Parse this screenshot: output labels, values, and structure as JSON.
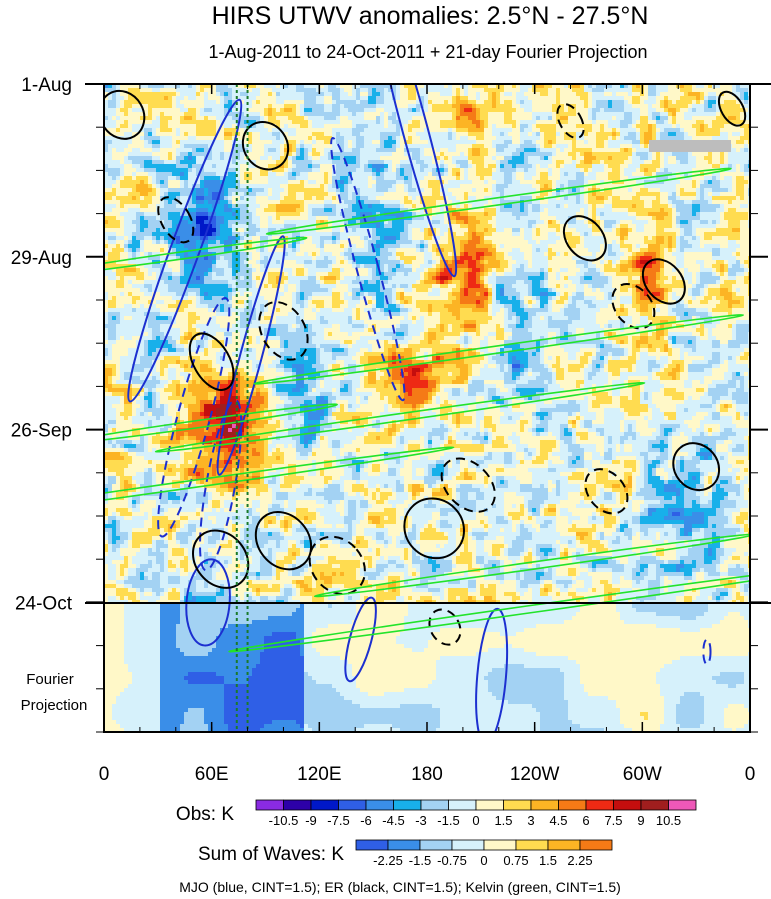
{
  "chart_data": {
    "type": "heatmap",
    "title": "HIRS UTWV anomalies: 2.5°N - 27.5°N",
    "subtitle": "1-Aug-2011 to 24-Oct-2011 + 21-day Fourier Projection",
    "x_ticks": [
      "0",
      "60E",
      "120E",
      "180",
      "120W",
      "60W",
      "0"
    ],
    "x_range_deg": [
      0,
      360
    ],
    "y_ticks": [
      "1-Aug",
      "29-Aug",
      "26-Sep",
      "24-Oct"
    ],
    "y_tick_days": [
      0,
      28,
      56,
      84
    ],
    "y_range_days": [
      0,
      105
    ],
    "observation_end_day": 84,
    "projection_label": [
      "Fourier",
      "Projection"
    ],
    "reference_lon_deg": [
      74,
      80
    ],
    "obs_legend": {
      "label": "Obs: K",
      "levels": [
        "-10.5",
        "-9",
        "-7.5",
        "-6",
        "-4.5",
        "-3",
        "-1.5",
        "0",
        "1.5",
        "3",
        "4.5",
        "6",
        "7.5",
        "9",
        "10.5"
      ],
      "colors": [
        "#8a2be2",
        "#2d00a8",
        "#0018c8",
        "#2f5fe6",
        "#3a8ee8",
        "#18b0ea",
        "#a3d2f3",
        "#d6f1fb",
        "#fff8c8",
        "#ffdc50",
        "#fcb424",
        "#f57a16",
        "#ee2a14",
        "#c40e0e",
        "#a01e1e",
        "#ee58b8"
      ]
    },
    "waves_legend": {
      "label": "Sum of Waves: K",
      "levels": [
        "-2.25",
        "-1.5",
        "-0.75",
        "0",
        "0.75",
        "1.5",
        "2.25"
      ],
      "colors": [
        "#2f5fe6",
        "#3a8ee8",
        "#a3d2f3",
        "#d6f1fb",
        "#fff8c8",
        "#ffdc50",
        "#fcb424",
        "#f57a16"
      ]
    },
    "contour_note": "MJO (blue, CINT=1.5); ER (black, CINT=1.5); Kelvin (green, CINT=1.5)",
    "series": [
      {
        "name": "MJO",
        "color": "#1c2fd0",
        "contours": [
          {
            "lon": 45,
            "day": 27,
            "a": 8,
            "b": 26,
            "tilt": 20,
            "dash": false
          },
          {
            "lon": 82,
            "day": 44,
            "a": 6,
            "b": 20,
            "tilt": 15,
            "dash": false
          },
          {
            "lon": 50,
            "day": 54,
            "a": 9,
            "b": 20,
            "tilt": 15,
            "dash": true
          },
          {
            "lon": 58,
            "day": 84,
            "a": 12,
            "b": 7,
            "tilt": 5,
            "dash": false
          },
          {
            "lon": 65,
            "day": 65,
            "a": 8,
            "b": 14,
            "tilt": 10,
            "dash": true
          },
          {
            "lon": 173,
            "day": 7,
            "a": 7,
            "b": 25,
            "tilt": -15,
            "dash": false
          },
          {
            "lon": 147,
            "day": 30,
            "a": 6,
            "b": 22,
            "tilt": -15,
            "dash": true
          },
          {
            "lon": 143,
            "day": 90,
            "a": 6,
            "b": 7,
            "tilt": 15,
            "dash": false
          },
          {
            "lon": 216,
            "day": 96,
            "a": 8,
            "b": 11,
            "tilt": 5,
            "dash": false
          },
          {
            "lon": 336,
            "day": 92,
            "a": 2,
            "b": 2,
            "tilt": 0,
            "dash": true
          }
        ]
      },
      {
        "name": "ER",
        "color": "#000000",
        "contours": [
          {
            "lon": 10,
            "day": 5,
            "a": 12,
            "b": 4,
            "tilt": -30,
            "dash": false
          },
          {
            "lon": 40,
            "day": 22,
            "a": 8,
            "b": 4,
            "tilt": -30,
            "dash": true
          },
          {
            "lon": 90,
            "day": 10,
            "a": 12,
            "b": 4,
            "tilt": -35,
            "dash": false
          },
          {
            "lon": 60,
            "day": 45,
            "a": 10,
            "b": 5,
            "tilt": -30,
            "dash": false
          },
          {
            "lon": 100,
            "day": 40,
            "a": 12,
            "b": 5,
            "tilt": -30,
            "dash": true
          },
          {
            "lon": 65,
            "day": 77,
            "a": 14,
            "b": 5,
            "tilt": -40,
            "dash": false
          },
          {
            "lon": 100,
            "day": 74,
            "a": 14,
            "b": 5,
            "tilt": -40,
            "dash": false
          },
          {
            "lon": 130,
            "day": 78,
            "a": 14,
            "b": 5,
            "tilt": -40,
            "dash": true
          },
          {
            "lon": 203,
            "day": 65,
            "a": 12,
            "b": 5,
            "tilt": -45,
            "dash": true
          },
          {
            "lon": 184,
            "day": 72,
            "a": 16,
            "b": 5,
            "tilt": -45,
            "dash": false
          },
          {
            "lon": 295,
            "day": 36,
            "a": 10,
            "b": 4,
            "tilt": -40,
            "dash": true
          },
          {
            "lon": 268,
            "day": 25,
            "a": 10,
            "b": 4,
            "tilt": -40,
            "dash": false
          },
          {
            "lon": 312,
            "day": 32,
            "a": 10,
            "b": 4,
            "tilt": -40,
            "dash": false
          },
          {
            "lon": 280,
            "day": 66,
            "a": 10,
            "b": 4,
            "tilt": -40,
            "dash": true
          },
          {
            "lon": 330,
            "day": 62,
            "a": 12,
            "b": 4,
            "tilt": -40,
            "dash": false
          },
          {
            "lon": 190,
            "day": 88,
            "a": 8,
            "b": 3,
            "tilt": -30,
            "dash": true
          },
          {
            "lon": 350,
            "day": 4,
            "a": 6,
            "b": 3,
            "tilt": -30,
            "dash": false
          },
          {
            "lon": 260,
            "day": 6,
            "a": 6,
            "b": 3,
            "tilt": -30,
            "dash": true
          }
        ]
      },
      {
        "name": "Kelvin",
        "color": "#22e32a",
        "contours": [
          {
            "lon": 38,
            "day": 28,
            "a": 2,
            "b": 22,
            "tilt": 82,
            "dash": false
          },
          {
            "lon": 220,
            "day": 19,
            "a": 2,
            "b": 38,
            "tilt": 82,
            "dash": false
          },
          {
            "lon": 220,
            "day": 43,
            "a": 2,
            "b": 40,
            "tilt": 82,
            "dash": false
          },
          {
            "lon": 165,
            "day": 54,
            "a": 2,
            "b": 40,
            "tilt": 82,
            "dash": false
          },
          {
            "lon": 45,
            "day": 65,
            "a": 2,
            "b": 44,
            "tilt": 82,
            "dash": false
          },
          {
            "lon": 240,
            "day": 78,
            "a": 2,
            "b": 36,
            "tilt": 82,
            "dash": false
          },
          {
            "lon": 240,
            "day": 85,
            "a": 2,
            "b": 50,
            "tilt": 82,
            "dash": false
          },
          {
            "lon": 55,
            "day": 55,
            "a": 2,
            "b": 22,
            "tilt": 82,
            "dash": false
          }
        ]
      }
    ]
  }
}
